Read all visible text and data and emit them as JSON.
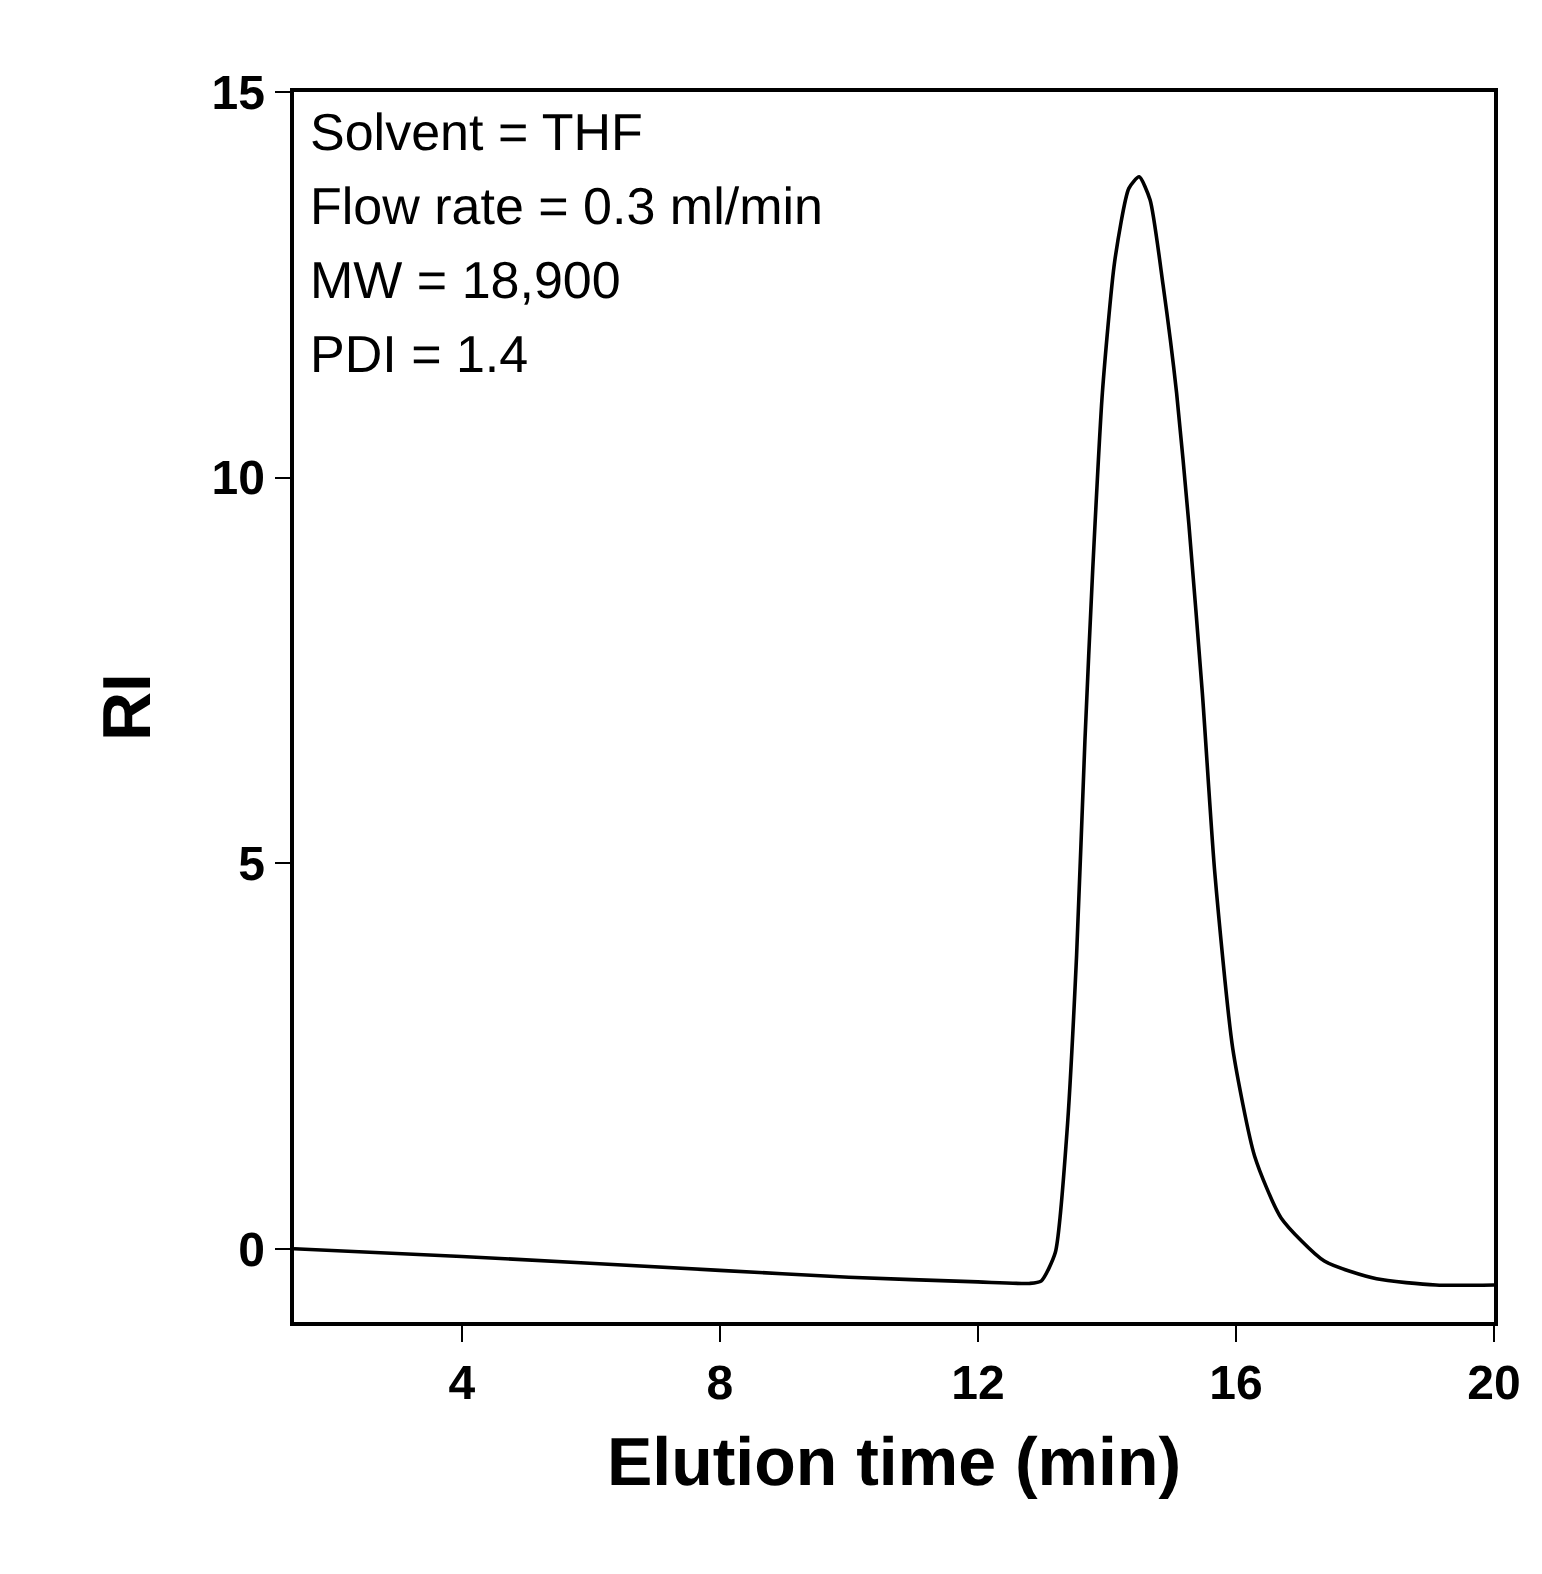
{
  "chart_data": {
    "type": "line",
    "xlabel": "Elution time (min)",
    "ylabel": "RI",
    "annotations": [
      "Solvent = THF",
      "Flow rate = 0.3 ml/min",
      "MW = 18,900",
      "PDI = 1.4"
    ],
    "x": [
      1.4,
      4,
      8,
      10,
      12,
      12.8,
      12.98,
      13.2,
      13.38,
      13.53,
      13.66,
      13.78,
      13.93,
      14.12,
      14.34,
      14.5,
      14.67,
      14.87,
      15.08,
      15.27,
      15.48,
      15.67,
      15.95,
      16.29,
      16.7,
      17.37,
      18.18,
      19.1,
      20
    ],
    "series": [
      {
        "color": "#000000",
        "values": [
          0,
          -0.1,
          -0.28,
          -0.37,
          -0.43,
          -0.45,
          -0.42,
          -0.05,
          1.5,
          3.8,
          6.6,
          8.8,
          11.1,
          12.8,
          13.75,
          13.9,
          13.6,
          12.5,
          11.1,
          9.4,
          7.2,
          4.9,
          2.6,
          1.2,
          0.4,
          -0.16,
          -0.39,
          -0.47,
          -0.47
        ]
      }
    ],
    "xlim": [
      1.4,
      20
    ],
    "xticks": [
      4,
      8,
      12,
      16,
      20
    ],
    "ylim": [
      -0.95,
      15
    ],
    "yticks": [
      0,
      5,
      10,
      15
    ],
    "grid": false,
    "marker": "none",
    "line_style": "solid"
  }
}
